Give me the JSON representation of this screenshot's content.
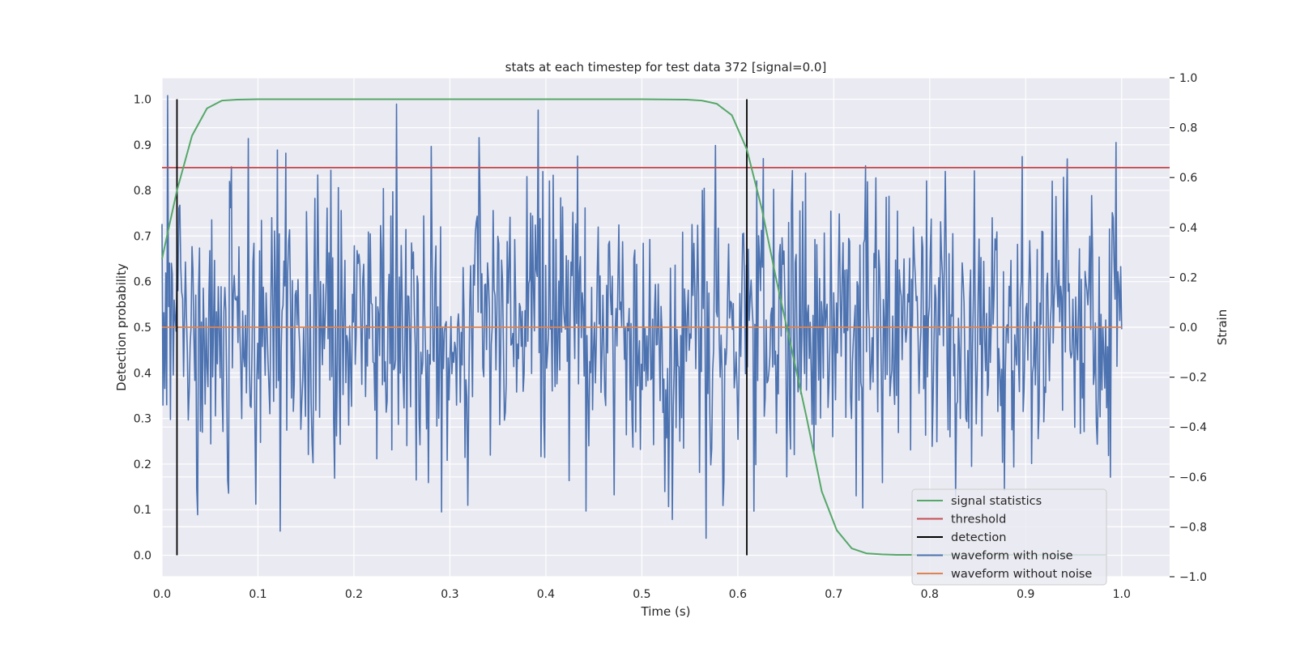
{
  "chart_data": {
    "type": "line",
    "title": "stats at each timestep for test data 372 [signal=0.0]",
    "xlabel": "Time (s)",
    "ylabel_left": "Detection probability",
    "ylabel_right": "Strain",
    "xlim": [
      0.0,
      1.05
    ],
    "ylim_left": [
      -0.047,
      1.047
    ],
    "ylim_right": [
      -1.0,
      1.0
    ],
    "xticks": [
      "0.0",
      "0.1",
      "0.2",
      "0.3",
      "0.4",
      "0.5",
      "0.6",
      "0.7",
      "0.8",
      "0.9",
      "1.0"
    ],
    "xtick_values": [
      0.0,
      0.1,
      0.2,
      0.3,
      0.4,
      0.5,
      0.6,
      0.7,
      0.8,
      0.9,
      1.0
    ],
    "yticks_left": [
      "0.0",
      "0.1",
      "0.2",
      "0.3",
      "0.4",
      "0.5",
      "0.6",
      "0.7",
      "0.8",
      "0.9",
      "1.0"
    ],
    "ytick_values_left": [
      0.0,
      0.1,
      0.2,
      0.3,
      0.4,
      0.5,
      0.6,
      0.7,
      0.8,
      0.9,
      1.0
    ],
    "yticks_right": [
      "−1.0",
      "−0.8",
      "−0.6",
      "−0.4",
      "−0.2",
      "0.0",
      "0.2",
      "0.4",
      "0.6",
      "0.8",
      "1.0"
    ],
    "ytick_values_right": [
      -1.0,
      -0.8,
      -0.6,
      -0.4,
      -0.2,
      0.0,
      0.2,
      0.4,
      0.6,
      0.8,
      1.0
    ],
    "grid": true,
    "legend_position": "bottom-right",
    "colors": {
      "signal_statistics": "#55a868",
      "threshold": "#c44e52",
      "detection": "#000000",
      "waveform_with_noise": "#4c72b0",
      "waveform_without_noise": "#dd8452",
      "axes_bg": "#eaeaf2",
      "grid": "#ffffff"
    },
    "series": [
      {
        "name": "signal statistics",
        "axis": "left",
        "x": [
          0.0,
          0.0156,
          0.0313,
          0.0469,
          0.0625,
          0.0781,
          0.1,
          0.2,
          0.3,
          0.4,
          0.5,
          0.5469,
          0.5625,
          0.5781,
          0.5938,
          0.6094,
          0.625,
          0.6406,
          0.6563,
          0.6719,
          0.6875,
          0.7031,
          0.7188,
          0.7344,
          0.75,
          0.7656,
          0.8,
          0.9,
          0.9844
        ],
        "y": [
          0.65,
          0.8,
          0.92,
          0.98,
          0.997,
          0.999,
          1.0,
          1.0,
          1.0,
          1.0,
          1.0,
          0.999,
          0.997,
          0.99,
          0.965,
          0.89,
          0.76,
          0.6,
          0.45,
          0.3,
          0.14,
          0.055,
          0.015,
          0.004,
          0.002,
          0.001,
          0.001,
          0.001,
          0.001
        ]
      },
      {
        "name": "threshold",
        "axis": "left",
        "x": [
          0.0,
          1.05
        ],
        "y": [
          0.85,
          0.85
        ]
      },
      {
        "name": "detection",
        "axis": "left",
        "x": [
          0.0156,
          0.6094
        ],
        "y": [
          1.0,
          1.0
        ]
      },
      {
        "name": "waveform with noise",
        "axis": "right",
        "x_range": [
          0.0,
          1.0
        ],
        "num_samples": 1024,
        "std": 0.3,
        "min": -0.92,
        "max": 1.0,
        "seed": 372
      },
      {
        "name": "waveform without noise",
        "axis": "right",
        "x": [
          0.0,
          1.0
        ],
        "y": [
          0.0,
          0.0
        ]
      }
    ],
    "legend": [
      "signal statistics",
      "threshold",
      "detection",
      "waveform with noise",
      "waveform without noise"
    ]
  }
}
